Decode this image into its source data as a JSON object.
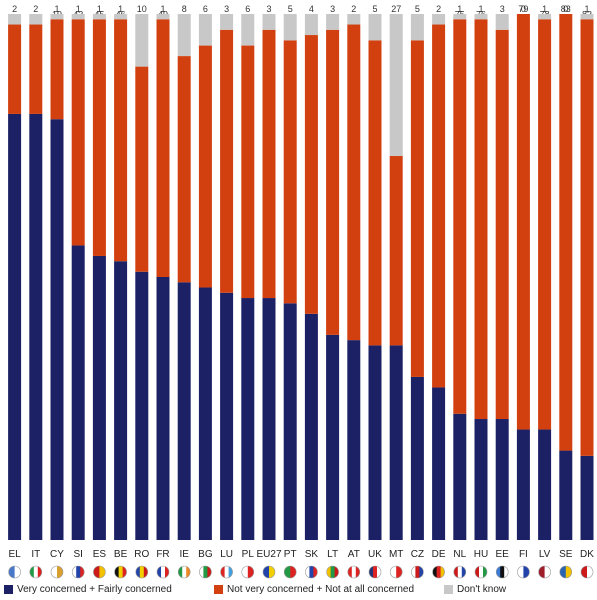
{
  "chart_data": {
    "type": "bar",
    "stacked": true,
    "orientation": "vertical",
    "categories": [
      "EL",
      "IT",
      "CY",
      "SI",
      "ES",
      "BE",
      "RO",
      "FR",
      "IE",
      "BG",
      "LU",
      "PL",
      "EU27",
      "PT",
      "SK",
      "LT",
      "AT",
      "UK",
      "MT",
      "CZ",
      "DE",
      "NL",
      "HU",
      "EE",
      "FI",
      "LV",
      "SE",
      "DK"
    ],
    "series": [
      {
        "name": "Very concerned + Fairly concerned",
        "color": "#1c2166",
        "values": [
          81,
          81,
          80,
          56,
          54,
          53,
          51,
          50,
          49,
          48,
          47,
          46,
          46,
          45,
          43,
          39,
          38,
          37,
          37,
          31,
          29,
          24,
          23,
          23,
          21,
          21,
          17,
          16
        ]
      },
      {
        "name": "Not very concerned + Not at all concerned",
        "color": "#d2400f",
        "values": [
          17,
          17,
          19,
          43,
          45,
          46,
          39,
          49,
          43,
          46,
          50,
          48,
          51,
          50,
          53,
          58,
          60,
          58,
          36,
          64,
          69,
          75,
          76,
          74,
          79,
          78,
          83,
          83
        ]
      },
      {
        "name": "Don't know",
        "color": "#c8c8c8",
        "values": [
          2,
          2,
          1,
          1,
          1,
          1,
          10,
          1,
          8,
          6,
          3,
          6,
          3,
          5,
          4,
          3,
          2,
          5,
          27,
          5,
          2,
          1,
          1,
          3,
          0,
          1,
          0,
          1
        ]
      }
    ],
    "ylim": [
      0,
      100
    ],
    "grid": false,
    "legend_position": "bottom",
    "flags": "country flag icons under each category label"
  }
}
